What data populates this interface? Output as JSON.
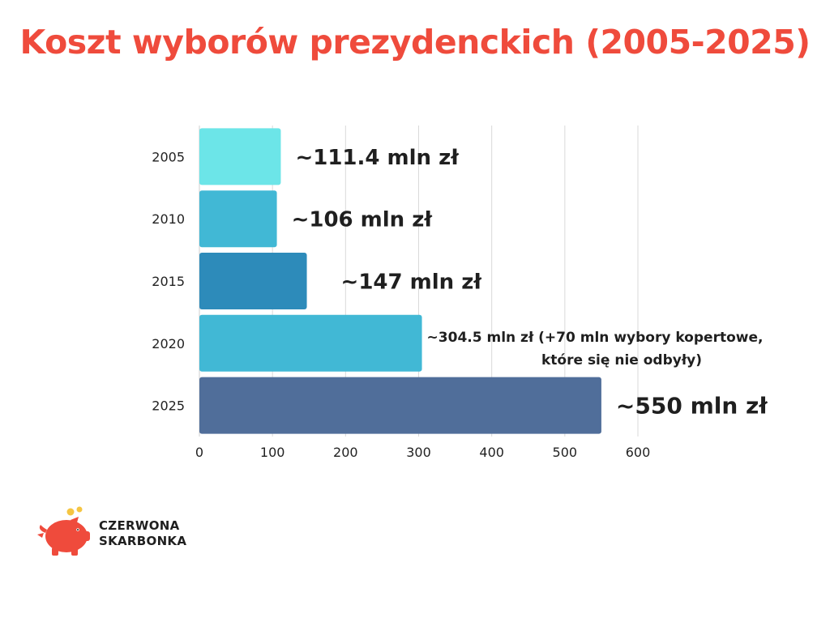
{
  "title": "Koszt wyborów prezydenckich (2005-2025)",
  "chart_data": {
    "type": "bar",
    "orientation": "horizontal",
    "categories": [
      "2005",
      "2010",
      "2015",
      "2020",
      "2025"
    ],
    "values": [
      111.4,
      106,
      147,
      304.5,
      550
    ],
    "data_labels": [
      [
        "~111.4 mln zł"
      ],
      [
        "~106 mln zł"
      ],
      [
        "~147 mln zł"
      ],
      [
        "~304.5 mln zł (+70 mln wybory kopertowe,",
        "które się nie odbyły)"
      ],
      [
        "~550 mln zł"
      ]
    ],
    "colors": [
      "#6CE5E8",
      "#41B8D5",
      "#2D8BBA",
      "#41B8D5",
      "#506E9A"
    ],
    "xlim": [
      0,
      600
    ],
    "x_ticks": [
      "0",
      "100",
      "200",
      "300",
      "400",
      "500",
      "600"
    ],
    "grid": true,
    "xlabel": "",
    "ylabel": ""
  },
  "logo": {
    "line1": "CZERWONA",
    "line2": "SKARBONKA",
    "icon": "piggy-bank-icon",
    "color": "#EF4B3C"
  }
}
